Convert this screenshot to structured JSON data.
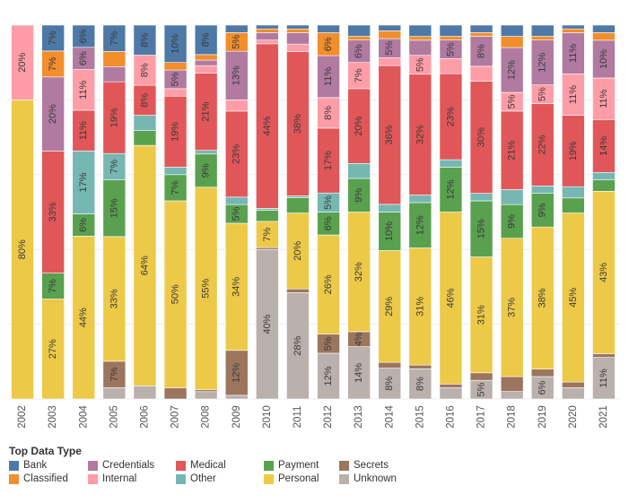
{
  "chart_data": {
    "type": "bar",
    "stacked": true,
    "normalized": true,
    "orientation": "vertical",
    "categories": [
      "2002",
      "2003",
      "2004",
      "2005",
      "2006",
      "2007",
      "2008",
      "2009",
      "2010",
      "2011",
      "2012",
      "2013",
      "2014",
      "2015",
      "2016",
      "2017",
      "2018",
      "2019",
      "2020",
      "2021"
    ],
    "series": [
      {
        "name": "Unknown",
        "color": "#bab0ac",
        "values": [
          0,
          0,
          0,
          3,
          3.5,
          0,
          2,
          1,
          40,
          28,
          12,
          14,
          8,
          8,
          3,
          5,
          2,
          6,
          3,
          11
        ]
      },
      {
        "name": "Secrets",
        "color": "#9c755f",
        "values": [
          0,
          0,
          0,
          7,
          0,
          3,
          0.5,
          12,
          0.5,
          1,
          5,
          4,
          1.5,
          1,
          1,
          2,
          4,
          2,
          1.5,
          1
        ]
      },
      {
        "name": "Personal",
        "color": "#edc948",
        "values": [
          80,
          27,
          44,
          33,
          64,
          50,
          55,
          34,
          7,
          20,
          26,
          32,
          29,
          31,
          46,
          31,
          37,
          38,
          45,
          43
        ]
      },
      {
        "name": "Payment",
        "color": "#59a14f",
        "values": [
          0,
          7,
          6,
          15,
          4,
          7,
          9,
          5,
          3,
          4,
          6,
          9,
          10,
          12,
          12,
          15,
          9,
          9,
          4,
          3
        ]
      },
      {
        "name": "Other",
        "color": "#76b7b2",
        "values": [
          0,
          0,
          17,
          7,
          4,
          2,
          1,
          2,
          0.5,
          0.5,
          5,
          4,
          2,
          2,
          2,
          2,
          4,
          2,
          3,
          2
        ]
      },
      {
        "name": "Medical",
        "color": "#e15759",
        "values": [
          0,
          33,
          11,
          19,
          8,
          19,
          21,
          23,
          44,
          38,
          17,
          20,
          36,
          32,
          23,
          30,
          21,
          22,
          19,
          14
        ]
      },
      {
        "name": "Internal",
        "color": "#ff9da7",
        "values": [
          20,
          0,
          11,
          0,
          8,
          2,
          2,
          3,
          1,
          2,
          8,
          7,
          2,
          5,
          4,
          4,
          5,
          5,
          11,
          11
        ]
      },
      {
        "name": "Credentials",
        "color": "#b07aa1",
        "values": [
          0,
          20,
          6,
          4,
          0,
          5,
          1.5,
          13,
          2,
          3,
          11,
          6,
          5,
          4,
          5,
          8,
          12,
          12,
          11,
          10
        ]
      },
      {
        "name": "Classified",
        "color": "#f28e2b",
        "values": [
          0,
          7,
          0,
          4,
          0,
          2,
          1.5,
          5,
          1,
          1,
          6,
          1,
          2,
          1,
          1,
          1,
          3,
          1,
          1,
          2
        ]
      },
      {
        "name": "Bank",
        "color": "#4e79a7",
        "values": [
          0,
          7,
          6,
          7,
          8,
          10,
          8,
          2,
          1,
          1,
          2,
          3,
          1.5,
          3,
          3,
          2,
          3,
          3,
          1,
          2
        ]
      }
    ],
    "labels": [
      {
        "cat": "2002",
        "series": "Personal",
        "text": "80%"
      },
      {
        "cat": "2002",
        "series": "Internal",
        "text": "20%"
      },
      {
        "cat": "2003",
        "series": "Personal",
        "text": "27%"
      },
      {
        "cat": "2003",
        "series": "Payment",
        "text": "7%"
      },
      {
        "cat": "2003",
        "series": "Medical",
        "text": "33%"
      },
      {
        "cat": "2003",
        "series": "Credentials",
        "text": "20%"
      },
      {
        "cat": "2003",
        "series": "Classified",
        "text": "7%"
      },
      {
        "cat": "2003",
        "series": "Bank",
        "text": "7%"
      },
      {
        "cat": "2004",
        "series": "Personal",
        "text": "44%"
      },
      {
        "cat": "2004",
        "series": "Payment",
        "text": "6%"
      },
      {
        "cat": "2004",
        "series": "Other",
        "text": "17%"
      },
      {
        "cat": "2004",
        "series": "Medical",
        "text": "11%"
      },
      {
        "cat": "2004",
        "series": "Internal",
        "text": "11%"
      },
      {
        "cat": "2004",
        "series": "Credentials",
        "text": "6%"
      },
      {
        "cat": "2004",
        "series": "Bank",
        "text": "6%"
      },
      {
        "cat": "2005",
        "series": "Secrets",
        "text": "7%"
      },
      {
        "cat": "2005",
        "series": "Personal",
        "text": "33%"
      },
      {
        "cat": "2005",
        "series": "Payment",
        "text": "15%"
      },
      {
        "cat": "2005",
        "series": "Other",
        "text": "7%"
      },
      {
        "cat": "2005",
        "series": "Medical",
        "text": "19%"
      },
      {
        "cat": "2005",
        "series": "Bank",
        "text": "7%"
      },
      {
        "cat": "2006",
        "series": "Personal",
        "text": "64%"
      },
      {
        "cat": "2006",
        "series": "Medical",
        "text": "8%"
      },
      {
        "cat": "2006",
        "series": "Internal",
        "text": "8%"
      },
      {
        "cat": "2006",
        "series": "Bank",
        "text": "8%"
      },
      {
        "cat": "2007",
        "series": "Personal",
        "text": "50%"
      },
      {
        "cat": "2007",
        "series": "Payment",
        "text": "7%"
      },
      {
        "cat": "2007",
        "series": "Medical",
        "text": "19%"
      },
      {
        "cat": "2007",
        "series": "Credentials",
        "text": "5%"
      },
      {
        "cat": "2007",
        "series": "Bank",
        "text": "10%"
      },
      {
        "cat": "2008",
        "series": "Personal",
        "text": "55%"
      },
      {
        "cat": "2008",
        "series": "Payment",
        "text": "9%"
      },
      {
        "cat": "2008",
        "series": "Medical",
        "text": "21%"
      },
      {
        "cat": "2008",
        "series": "Bank",
        "text": "8%"
      },
      {
        "cat": "2009",
        "series": "Secrets",
        "text": "12%"
      },
      {
        "cat": "2009",
        "series": "Personal",
        "text": "34%"
      },
      {
        "cat": "2009",
        "series": "Payment",
        "text": "5%"
      },
      {
        "cat": "2009",
        "series": "Medical",
        "text": "23%"
      },
      {
        "cat": "2009",
        "series": "Credentials",
        "text": "13%"
      },
      {
        "cat": "2009",
        "series": "Classified",
        "text": "5%"
      },
      {
        "cat": "2010",
        "series": "Unknown",
        "text": "40%"
      },
      {
        "cat": "2010",
        "series": "Personal",
        "text": "7%"
      },
      {
        "cat": "2010",
        "series": "Medical",
        "text": "44%"
      },
      {
        "cat": "2011",
        "series": "Unknown",
        "text": "28%"
      },
      {
        "cat": "2011",
        "series": "Personal",
        "text": "20%"
      },
      {
        "cat": "2011",
        "series": "Medical",
        "text": "38%"
      },
      {
        "cat": "2012",
        "series": "Unknown",
        "text": "12%"
      },
      {
        "cat": "2012",
        "series": "Secrets",
        "text": "5%"
      },
      {
        "cat": "2012",
        "series": "Personal",
        "text": "26%"
      },
      {
        "cat": "2012",
        "series": "Payment",
        "text": "6%"
      },
      {
        "cat": "2012",
        "series": "Other",
        "text": "5%"
      },
      {
        "cat": "2012",
        "series": "Medical",
        "text": "17%"
      },
      {
        "cat": "2012",
        "series": "Internal",
        "text": "8%"
      },
      {
        "cat": "2012",
        "series": "Credentials",
        "text": "11%"
      },
      {
        "cat": "2012",
        "series": "Classified",
        "text": "6%"
      },
      {
        "cat": "2013",
        "series": "Unknown",
        "text": "14%"
      },
      {
        "cat": "2013",
        "series": "Secrets",
        "text": "4%"
      },
      {
        "cat": "2013",
        "series": "Personal",
        "text": "32%"
      },
      {
        "cat": "2013",
        "series": "Payment",
        "text": "9%"
      },
      {
        "cat": "2013",
        "series": "Medical",
        "text": "20%"
      },
      {
        "cat": "2013",
        "series": "Internal",
        "text": "7%"
      },
      {
        "cat": "2013",
        "series": "Credentials",
        "text": "6%"
      },
      {
        "cat": "2014",
        "series": "Unknown",
        "text": "8%"
      },
      {
        "cat": "2014",
        "series": "Personal",
        "text": "29%"
      },
      {
        "cat": "2014",
        "series": "Payment",
        "text": "10%"
      },
      {
        "cat": "2014",
        "series": "Medical",
        "text": "36%"
      },
      {
        "cat": "2014",
        "series": "Credentials",
        "text": "5%"
      },
      {
        "cat": "2015",
        "series": "Unknown",
        "text": "8%"
      },
      {
        "cat": "2015",
        "series": "Personal",
        "text": "31%"
      },
      {
        "cat": "2015",
        "series": "Payment",
        "text": "12%"
      },
      {
        "cat": "2015",
        "series": "Medical",
        "text": "32%"
      },
      {
        "cat": "2015",
        "series": "Internal",
        "text": "5%"
      },
      {
        "cat": "2016",
        "series": "Personal",
        "text": "46%"
      },
      {
        "cat": "2016",
        "series": "Payment",
        "text": "12%"
      },
      {
        "cat": "2016",
        "series": "Medical",
        "text": "23%"
      },
      {
        "cat": "2016",
        "series": "Credentials",
        "text": "5%"
      },
      {
        "cat": "2017",
        "series": "Unknown",
        "text": "5%"
      },
      {
        "cat": "2017",
        "series": "Personal",
        "text": "31%"
      },
      {
        "cat": "2017",
        "series": "Payment",
        "text": "15%"
      },
      {
        "cat": "2017",
        "series": "Medical",
        "text": "30%"
      },
      {
        "cat": "2017",
        "series": "Credentials",
        "text": "8%"
      },
      {
        "cat": "2018",
        "series": "Personal",
        "text": "37%"
      },
      {
        "cat": "2018",
        "series": "Payment",
        "text": "9%"
      },
      {
        "cat": "2018",
        "series": "Medical",
        "text": "21%"
      },
      {
        "cat": "2018",
        "series": "Internal",
        "text": "5%"
      },
      {
        "cat": "2018",
        "series": "Credentials",
        "text": "12%"
      },
      {
        "cat": "2019",
        "series": "Unknown",
        "text": "6%"
      },
      {
        "cat": "2019",
        "series": "Personal",
        "text": "38%"
      },
      {
        "cat": "2019",
        "series": "Payment",
        "text": "9%"
      },
      {
        "cat": "2019",
        "series": "Medical",
        "text": "22%"
      },
      {
        "cat": "2019",
        "series": "Internal",
        "text": "5%"
      },
      {
        "cat": "2019",
        "series": "Credentials",
        "text": "12%"
      },
      {
        "cat": "2020",
        "series": "Personal",
        "text": "45%"
      },
      {
        "cat": "2020",
        "series": "Medical",
        "text": "19%"
      },
      {
        "cat": "2020",
        "series": "Internal",
        "text": "11%"
      },
      {
        "cat": "2020",
        "series": "Credentials",
        "text": "11%"
      },
      {
        "cat": "2021",
        "series": "Unknown",
        "text": "11%"
      },
      {
        "cat": "2021",
        "series": "Personal",
        "text": "43%"
      },
      {
        "cat": "2021",
        "series": "Medical",
        "text": "14%"
      },
      {
        "cat": "2021",
        "series": "Internal",
        "text": "11%"
      },
      {
        "cat": "2021",
        "series": "Credentials",
        "text": "10%"
      }
    ],
    "ylim": [
      0,
      100
    ],
    "grid": true
  },
  "legend": {
    "title": "Top Data Type",
    "items": [
      {
        "name": "Bank",
        "color": "#4e79a7"
      },
      {
        "name": "Credentials",
        "color": "#b07aa1"
      },
      {
        "name": "Medical",
        "color": "#e15759"
      },
      {
        "name": "Payment",
        "color": "#59a14f"
      },
      {
        "name": "Secrets",
        "color": "#9c755f"
      },
      {
        "name": "Classified",
        "color": "#f28e2b"
      },
      {
        "name": "Internal",
        "color": "#ff9da7"
      },
      {
        "name": "Other",
        "color": "#76b7b2"
      },
      {
        "name": "Personal",
        "color": "#edc948"
      },
      {
        "name": "Unknown",
        "color": "#bab0ac"
      }
    ]
  }
}
